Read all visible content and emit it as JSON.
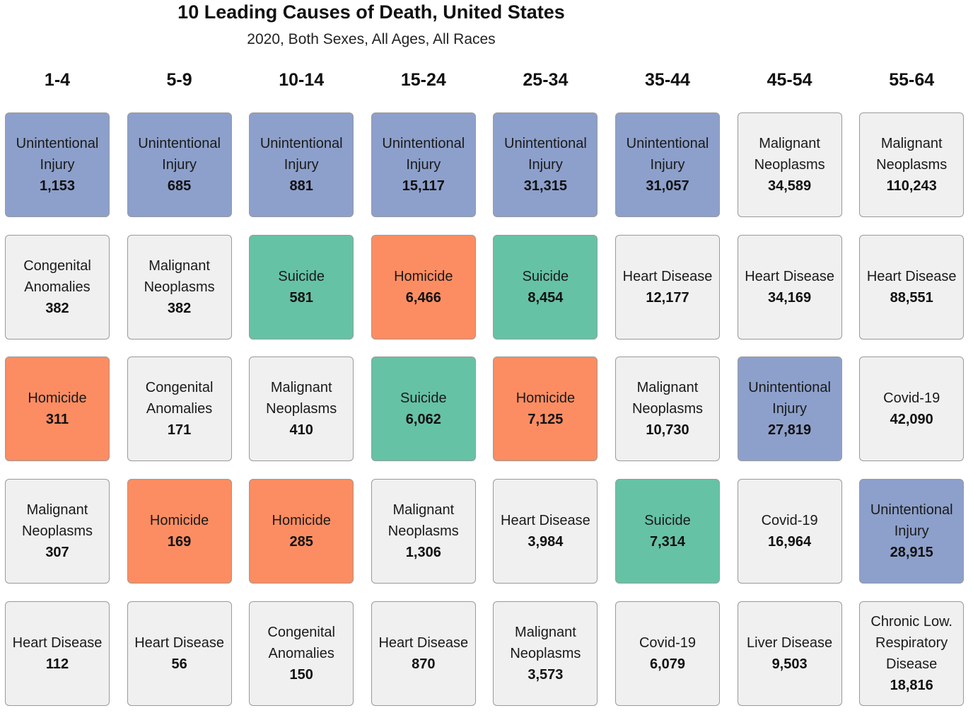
{
  "chart_data": {
    "type": "table",
    "title": "10 Leading Causes of Death, United States",
    "subtitle": "2020, Both Sexes, All Ages, All Races",
    "colors": {
      "Unintentional Injury": "#8da0cb",
      "Homicide": "#fc8d62",
      "Suicide": "#66c2a5",
      "default": "#f0f0f0"
    },
    "age_groups": [
      "1-4",
      "5-9",
      "10-14",
      "15-24",
      "25-34",
      "35-44",
      "45-54",
      "55-64"
    ],
    "rows": [
      [
        {
          "cause": "Unintentional Injury",
          "lines": [
            "Unintentional",
            "Injury"
          ],
          "count": "1,153"
        },
        {
          "cause": "Unintentional Injury",
          "lines": [
            "Unintentional",
            "Injury"
          ],
          "count": "685"
        },
        {
          "cause": "Unintentional Injury",
          "lines": [
            "Unintentional",
            "Injury"
          ],
          "count": "881"
        },
        {
          "cause": "Unintentional Injury",
          "lines": [
            "Unintentional",
            "Injury"
          ],
          "count": "15,117"
        },
        {
          "cause": "Unintentional Injury",
          "lines": [
            "Unintentional",
            "Injury"
          ],
          "count": "31,315"
        },
        {
          "cause": "Unintentional Injury",
          "lines": [
            "Unintentional",
            "Injury"
          ],
          "count": "31,057"
        },
        {
          "cause": "Malignant Neoplasms",
          "lines": [
            "Malignant",
            "Neoplasms"
          ],
          "count": "34,589"
        },
        {
          "cause": "Malignant Neoplasms",
          "lines": [
            "Malignant",
            "Neoplasms"
          ],
          "count": "110,243"
        }
      ],
      [
        {
          "cause": "Congenital Anomalies",
          "lines": [
            "Congenital",
            "Anomalies"
          ],
          "count": "382"
        },
        {
          "cause": "Malignant Neoplasms",
          "lines": [
            "Malignant",
            "Neoplasms"
          ],
          "count": "382"
        },
        {
          "cause": "Suicide",
          "lines": [
            "Suicide"
          ],
          "count": "581"
        },
        {
          "cause": "Homicide",
          "lines": [
            "Homicide"
          ],
          "count": "6,466"
        },
        {
          "cause": "Suicide",
          "lines": [
            "Suicide"
          ],
          "count": "8,454"
        },
        {
          "cause": "Heart Disease",
          "lines": [
            "Heart Disease"
          ],
          "count": "12,177"
        },
        {
          "cause": "Heart Disease",
          "lines": [
            "Heart Disease"
          ],
          "count": "34,169"
        },
        {
          "cause": "Heart Disease",
          "lines": [
            "Heart Disease"
          ],
          "count": "88,551"
        }
      ],
      [
        {
          "cause": "Homicide",
          "lines": [
            "Homicide"
          ],
          "count": "311"
        },
        {
          "cause": "Congenital Anomalies",
          "lines": [
            "Congenital",
            "Anomalies"
          ],
          "count": "171"
        },
        {
          "cause": "Malignant Neoplasms",
          "lines": [
            "Malignant",
            "Neoplasms"
          ],
          "count": "410"
        },
        {
          "cause": "Suicide",
          "lines": [
            "Suicide"
          ],
          "count": "6,062"
        },
        {
          "cause": "Homicide",
          "lines": [
            "Homicide"
          ],
          "count": "7,125"
        },
        {
          "cause": "Malignant Neoplasms",
          "lines": [
            "Malignant",
            "Neoplasms"
          ],
          "count": "10,730"
        },
        {
          "cause": "Unintentional Injury",
          "lines": [
            "Unintentional",
            "Injury"
          ],
          "count": "27,819"
        },
        {
          "cause": "Covid-19",
          "lines": [
            "Covid-19"
          ],
          "count": "42,090"
        }
      ],
      [
        {
          "cause": "Malignant Neoplasms",
          "lines": [
            "Malignant",
            "Neoplasms"
          ],
          "count": "307"
        },
        {
          "cause": "Homicide",
          "lines": [
            "Homicide"
          ],
          "count": "169"
        },
        {
          "cause": "Homicide",
          "lines": [
            "Homicide"
          ],
          "count": "285"
        },
        {
          "cause": "Malignant Neoplasms",
          "lines": [
            "Malignant",
            "Neoplasms"
          ],
          "count": "1,306"
        },
        {
          "cause": "Heart Disease",
          "lines": [
            "Heart Disease"
          ],
          "count": "3,984"
        },
        {
          "cause": "Suicide",
          "lines": [
            "Suicide"
          ],
          "count": "7,314"
        },
        {
          "cause": "Covid-19",
          "lines": [
            "Covid-19"
          ],
          "count": "16,964"
        },
        {
          "cause": "Unintentional Injury",
          "lines": [
            "Unintentional",
            "Injury"
          ],
          "count": "28,915"
        }
      ],
      [
        {
          "cause": "Heart Disease",
          "lines": [
            "Heart Disease"
          ],
          "count": "112"
        },
        {
          "cause": "Heart Disease",
          "lines": [
            "Heart Disease"
          ],
          "count": "56"
        },
        {
          "cause": "Congenital Anomalies",
          "lines": [
            "Congenital",
            "Anomalies"
          ],
          "count": "150"
        },
        {
          "cause": "Heart Disease",
          "lines": [
            "Heart Disease"
          ],
          "count": "870"
        },
        {
          "cause": "Malignant Neoplasms",
          "lines": [
            "Malignant",
            "Neoplasms"
          ],
          "count": "3,573"
        },
        {
          "cause": "Covid-19",
          "lines": [
            "Covid-19"
          ],
          "count": "6,079"
        },
        {
          "cause": "Liver Disease",
          "lines": [
            "Liver Disease"
          ],
          "count": "9,503"
        },
        {
          "cause": "Chronic Low. Respiratory Disease",
          "lines": [
            "Chronic Low.",
            "Respiratory",
            "Disease"
          ],
          "count": "18,816"
        }
      ]
    ]
  }
}
